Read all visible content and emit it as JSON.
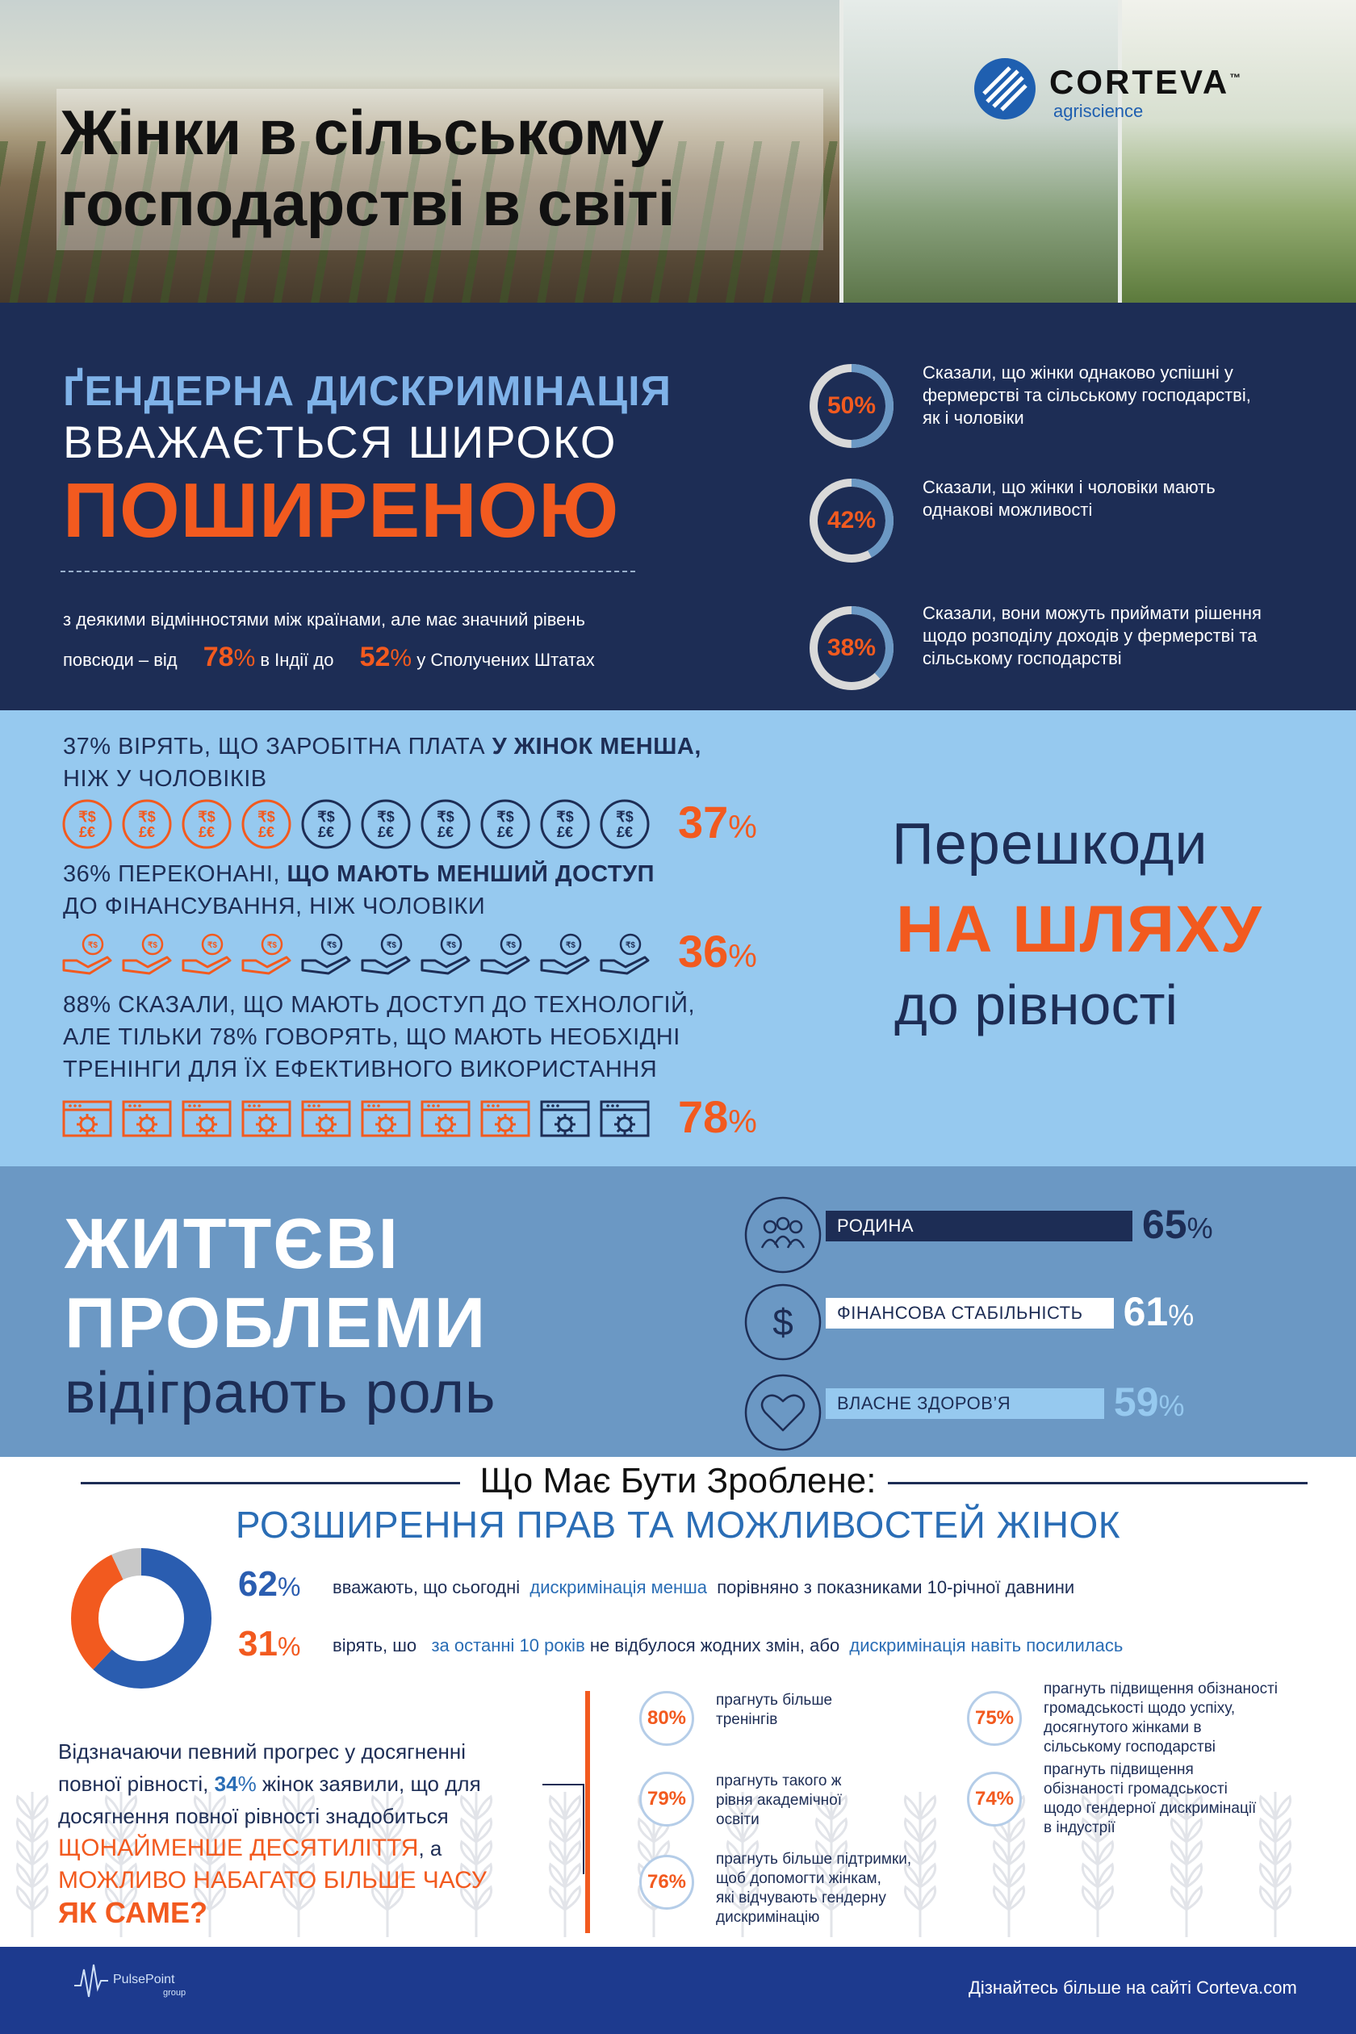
{
  "header": {
    "title_line1": "Жінки в сільському",
    "title_line2": "господарстві в світі",
    "logo_name": "CORTEVA",
    "logo_tm": "™",
    "logo_sub": "agriscience"
  },
  "discrimination": {
    "title_line1": "ҐЕНДЕРНА ДИСКРИМІНАЦІЯ",
    "title_line2": "ВВАЖАЄТЬСЯ ШИРОКО",
    "title_line3": "ПОШИРЕНОЮ",
    "note_line1": "з деякими відмінностями між країнами, але має значний рівень",
    "note_prefix": "повсюди – від",
    "india_value": "78",
    "india_unit": "%",
    "india_text": "в Індії до",
    "usa_value": "52",
    "usa_unit": "%",
    "usa_text": "у Сполучених Штатах",
    "stats": [
      {
        "value": 50,
        "label": "50%",
        "text": "Сказали, що жінки однаково успішні у фермерстві та сільському господарстві, як і чоловіки"
      },
      {
        "value": 42,
        "label": "42%",
        "text": "Сказали, що жінки і чоловіки мають однакові можливості"
      },
      {
        "value": 38,
        "label": "38%",
        "text": "Сказали, вони можуть приймати рішення щодо розподілу доходів у фермерстві та сільському господарстві"
      }
    ]
  },
  "barriers": {
    "heading_line1": "Перешкоди",
    "heading_line2": "НА ШЛЯХУ",
    "heading_line3": "до рівності",
    "items": [
      {
        "text_a": "37% ВІРЯТЬ, ЩО ЗАРОБІТНА ПЛАТА",
        "text_b": "У ЖІНОК МЕНША,",
        "text_c": "НІЖ У ЧОЛОВІКІВ",
        "value": 37,
        "pct_num": "37",
        "pct_unit": "%",
        "icon": "currency-coin-icon",
        "icon_glyph": "₹$\n£€"
      },
      {
        "text_a": "36% ПЕРЕКОНАНІ,",
        "text_b": "ЩО МАЮТЬ МЕНШИЙ ДОСТУП",
        "text_c": "ДО ФІНАНСУВАННЯ, НІЖ ЧОЛОВІКИ",
        "value": 36,
        "pct_num": "36",
        "pct_unit": "%",
        "icon": "hand-coin-icon"
      },
      {
        "text_a": "88% СКАЗАЛИ, ЩО МАЮТЬ ДОСТУП ДО ТЕХНОЛОГІЙ,",
        "text_b": "АЛЕ ТІЛЬКИ 78% ГОВОРЯТЬ, ЩО МАЮТЬ НЕОБХІДНІ",
        "text_c": "ТРЕНІНГИ ДЛЯ ЇХ ЕФЕКТИВНОГО ВИКОРИСТАННЯ",
        "value": 78,
        "pct_num": "78",
        "pct_unit": "%",
        "icon": "browser-gear-icon"
      }
    ],
    "colors": {
      "filled": "#f25a1f",
      "empty": "#1d2d55"
    }
  },
  "life": {
    "title_line1": "ЖИТТЄВІ",
    "title_line2": "ПРОБЛЕМИ",
    "title_line3": "відіграють роль",
    "items": [
      {
        "label": "РОДИНА",
        "value": 65,
        "pct_num": "65",
        "pct_unit": "%",
        "icon": "family-icon",
        "bar_color": "#1d2d55",
        "text_color": "#ffffff"
      },
      {
        "label": "ФІНАНСОВА СТАБІЛЬНІСТЬ",
        "value": 61,
        "pct_num": "61",
        "pct_unit": "%",
        "icon": "dollar-icon",
        "bar_color": "#ffffff",
        "text_color": "#1d2d55"
      },
      {
        "label": "ВЛАСНЕ ЗДОРОВ’Я",
        "value": 59,
        "pct_num": "59",
        "pct_unit": "%",
        "icon": "heart-icon",
        "bar_color": "#96c9ef",
        "text_color": "#1d2d55"
      }
    ]
  },
  "action": {
    "heading": "Що Має Бути Зроблене:",
    "subheading": "РОЗШИРЕННЯ ПРАВ ТА МОЖЛИВОСТЕЙ ЖІНОК",
    "donut": [
      {
        "value": 62,
        "color": "#2a5db0"
      },
      {
        "value": 31,
        "color": "#f25a1f"
      },
      {
        "value": 7,
        "color": "#c8c8c8"
      }
    ],
    "stat1_num": "62",
    "stat1_unit": "%",
    "stat1_a": "вважають, що сьогодні",
    "stat1_b": "дискримінація менша",
    "stat1_c": "порівняно з показниками 10-річної давнини",
    "stat2_num": "31",
    "stat2_unit": "%",
    "stat2_a": "вірять, шо",
    "stat2_b": "за останні 10 років",
    "stat2_c": "не відбулося жодних змін, або",
    "stat2_d": "дискримінація навіть посилилась",
    "progress_line1": "Відзначаючи певний прогрес у досягненні",
    "progress_line2a": "повної рівності,",
    "progress_num": "34",
    "progress_unit": "%",
    "progress_line2b": "жінок заявили, що для",
    "progress_line3": "досягнення повної рівності знадобиться",
    "progress_line4a": "ЩОНАЙМЕНШЕ ДЕСЯТИЛІТТЯ",
    "progress_line4b": ", а",
    "progress_line5": "МОЖЛИВО НАБАГАТО БІЛЬШЕ ЧАСУ",
    "progress_line6": "ЯК САМЕ?",
    "wishes_left": [
      {
        "label": "80%",
        "text": "прагнуть більше\nтренінгів"
      },
      {
        "label": "79%",
        "text": "прагнуть такого ж\nрівня академічної\nосвіти"
      },
      {
        "label": "76%",
        "text": "прагнуть більше підтримки,\nщоб допомогти жінкам,\nякі відчувають гендерну\nдискримінацію"
      }
    ],
    "wishes_right": [
      {
        "label": "75%",
        "text": "прагнуть підвищення обізнаності\nгромадськості щодо успіху,\nдосягнутого жінками в\nсільському господарстві"
      },
      {
        "label": "74%",
        "text": "прагнуть підвищення\nобізнаності громадськості\nщодо гендерної дискримінації\nв індустрії"
      }
    ]
  },
  "footer": {
    "brand": "PulsePoint",
    "brand_sub": "group",
    "link_text": "Дізнайтесь більше на сайті Corteva.com"
  }
}
